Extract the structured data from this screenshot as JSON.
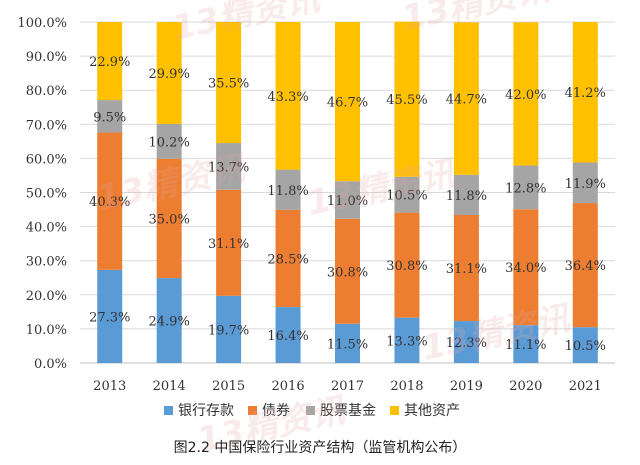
{
  "chart_data": {
    "type": "bar",
    "stacked": true,
    "percent": true,
    "categories": [
      "2013",
      "2014",
      "2015",
      "2016",
      "2017",
      "2018",
      "2019",
      "2020",
      "2021"
    ],
    "series": [
      {
        "name": "银行存款",
        "color": "#5B9BD5",
        "values": [
          27.3,
          24.9,
          19.7,
          16.4,
          11.5,
          13.3,
          12.3,
          11.1,
          10.5
        ],
        "labels": [
          "27.3%",
          "24.9%",
          "19.7%",
          "16.4%",
          "11.5%",
          "13.3%",
          "12.3%",
          "11.1%",
          "10.5%"
        ]
      },
      {
        "name": "债券",
        "color": "#ED7D31",
        "values": [
          40.3,
          35.0,
          31.1,
          28.5,
          30.8,
          30.8,
          31.1,
          34.0,
          36.4
        ],
        "labels": [
          "40.3%",
          "35.0%",
          "31.1%",
          "28.5%",
          "30.8%",
          "30.8%",
          "31.1%",
          "34.0%",
          "36.4%"
        ]
      },
      {
        "name": "股票基金",
        "color": "#A5A5A5",
        "values": [
          9.5,
          10.2,
          13.7,
          11.8,
          11.0,
          10.5,
          11.8,
          12.8,
          11.9
        ],
        "labels": [
          "9.5%",
          "10.2%",
          "13.7%",
          "11.8%",
          "11.0%",
          "10.5%",
          "11.8%",
          "12.8%",
          "11.9%"
        ]
      },
      {
        "name": "其他资产",
        "color": "#FFC000",
        "values": [
          22.9,
          29.9,
          35.5,
          43.3,
          46.7,
          45.5,
          44.7,
          42.0,
          41.2
        ],
        "labels": [
          "22.9%",
          "29.9%",
          "35.5%",
          "43.3%",
          "46.7%",
          "45.5%",
          "44.7%",
          "42.0%",
          "41.2%"
        ]
      }
    ],
    "yticks": [
      "0.0%",
      "10.0%",
      "20.0%",
      "30.0%",
      "40.0%",
      "50.0%",
      "60.0%",
      "70.0%",
      "80.0%",
      "90.0%",
      "100.0%"
    ],
    "ylim": [
      0,
      100
    ],
    "grid": true,
    "legend_position": "bottom",
    "title": "",
    "xlabel": "",
    "ylabel": ""
  },
  "caption": "图2.2  中国保险行业资产结构（监管机构公布）",
  "watermark": "13精资讯"
}
